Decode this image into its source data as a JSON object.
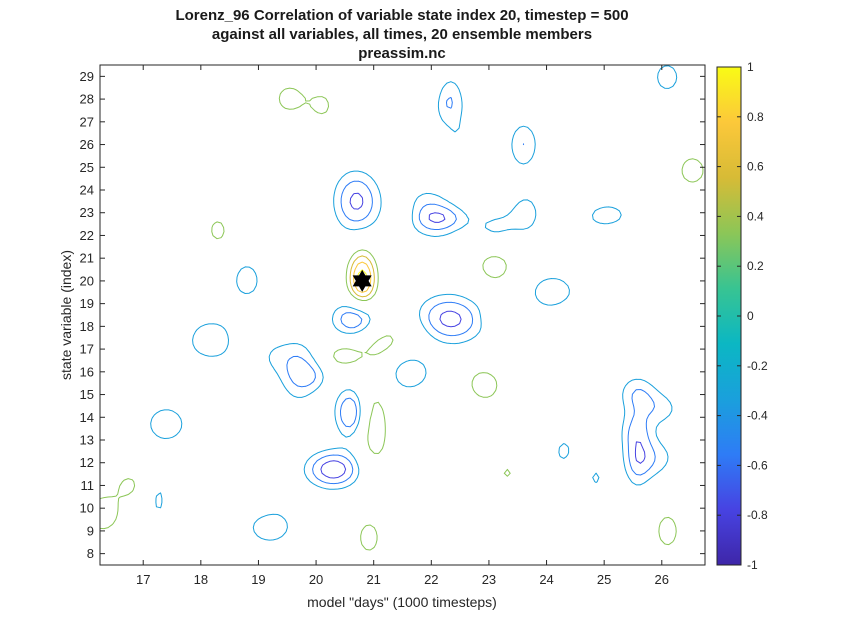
{
  "chart_data": {
    "type": "contour",
    "title_lines": [
      "Lorenz_96 Correlation of variable state index 20, timestep = 500",
      "against all variables, all times, 20 ensemble members",
      "preassim.nc"
    ],
    "xlabel": "model \"days\" (1000 timesteps)",
    "ylabel": "state variable (index)",
    "xlim": [
      16.25,
      26.75
    ],
    "ylim": [
      7.5,
      29.5
    ],
    "x_ticks": [
      17,
      18,
      19,
      20,
      21,
      22,
      23,
      24,
      25,
      26
    ],
    "y_ticks": [
      8,
      9,
      10,
      11,
      12,
      13,
      14,
      15,
      16,
      17,
      18,
      19,
      20,
      21,
      22,
      23,
      24,
      25,
      26,
      27,
      28,
      29
    ],
    "colorbar": {
      "min": -1,
      "max": 1,
      "ticks": [
        1,
        0.8,
        0.6,
        0.4,
        0.2,
        0,
        -0.2,
        -0.4,
        -0.6,
        -0.8,
        -1
      ],
      "colormap": [
        "#3e26a8",
        "#4743e2",
        "#2e7cf6",
        "#1aa0dc",
        "#0bb7c3",
        "#38c492",
        "#8cc657",
        "#d7bb36",
        "#fcc83a",
        "#f9fb15"
      ]
    },
    "marker": {
      "x": 20.8,
      "y": 20,
      "shape": "hexagram",
      "color": "#000000"
    },
    "contour_levels": [
      -0.9,
      -0.7,
      -0.5,
      -0.3,
      0.3,
      0.5,
      0.7,
      0.9
    ],
    "grid": false
  }
}
